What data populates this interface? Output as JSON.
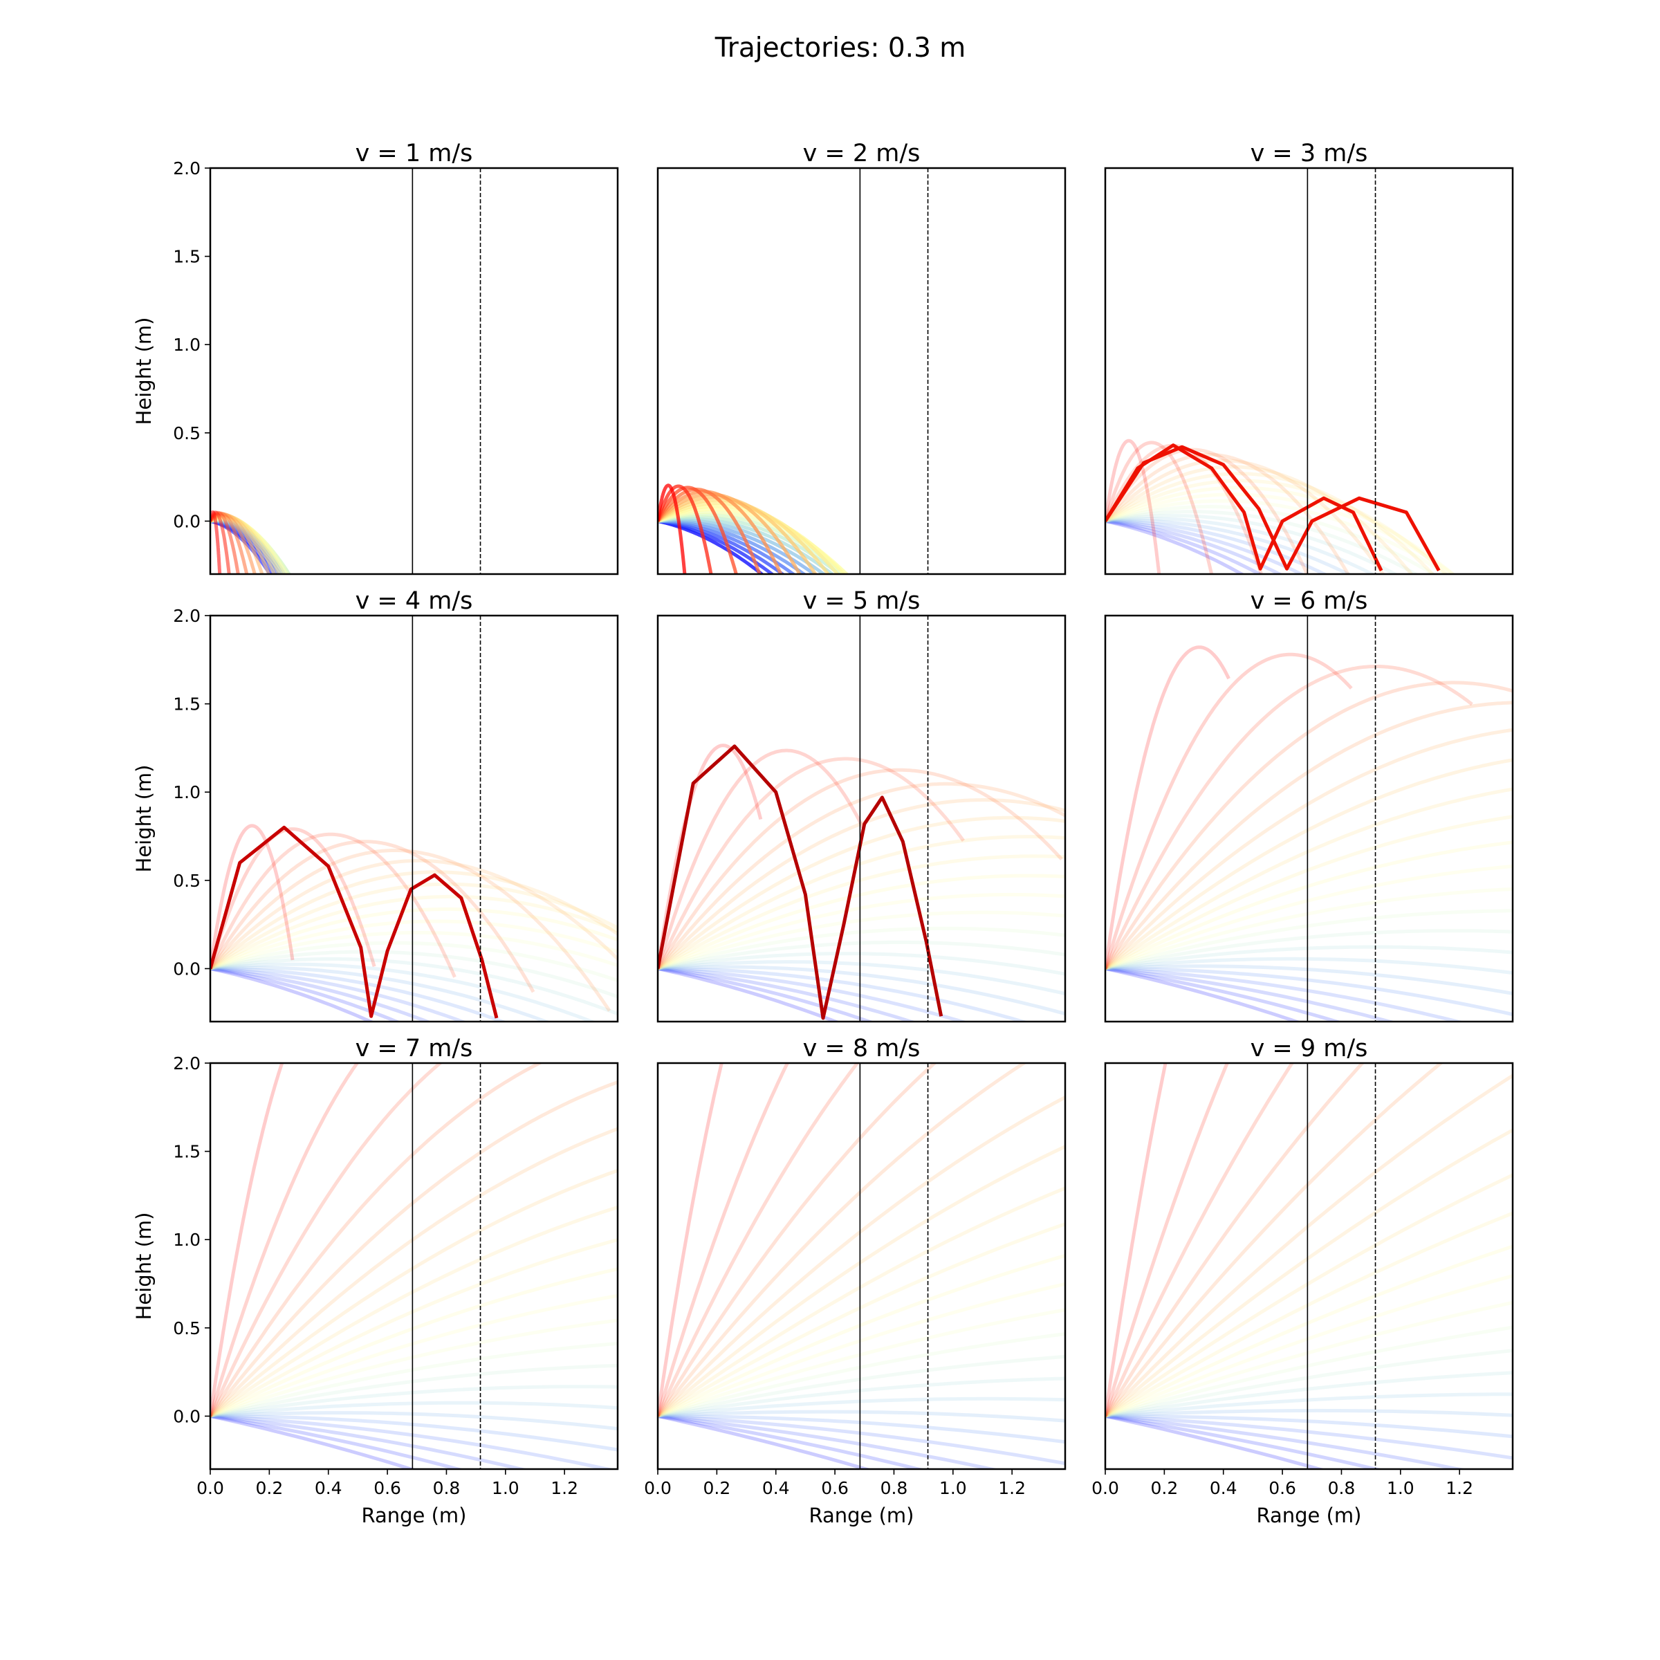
{
  "chart_data": {
    "type": "line",
    "title": "Trajectories: 0.3 m",
    "xlabel": "Range (m)",
    "ylabel": "Height (m)",
    "xlim": [
      0,
      1.38
    ],
    "ylim": [
      -0.3,
      2.0
    ],
    "x_ticks": [
      "0.0",
      "0.2",
      "0.4",
      "0.6",
      "0.8",
      "1.0",
      "1.2"
    ],
    "y_ticks": [
      "0.0",
      "0.5",
      "1.0",
      "1.5",
      "2.0"
    ],
    "reference_lines": {
      "solid_x": 0.685,
      "dashed_x": 0.915
    },
    "launch_angles_deg": {
      "min": -20,
      "max": 85,
      "count": 22
    },
    "colormap": "rainbow (blue for low angles → red for high angles)",
    "panels": [
      {
        "title": "v = 1 m/s",
        "speed": 1,
        "highlight": null
      },
      {
        "title": "v = 2 m/s",
        "speed": 2,
        "highlight": null
      },
      {
        "title": "v = 3 m/s",
        "speed": 3,
        "highlight": {
          "color": "#ee1100",
          "paths": [
            [
              [
                0,
                0
              ],
              [
                0.11,
                0.3
              ],
              [
                0.23,
                0.43
              ],
              [
                0.36,
                0.3
              ],
              [
                0.47,
                0.05
              ],
              [
                0.525,
                -0.27
              ],
              [
                0.6,
                0.0
              ],
              [
                0.74,
                0.13
              ],
              [
                0.84,
                0.05
              ],
              [
                0.935,
                -0.28
              ]
            ],
            [
              [
                0,
                0
              ],
              [
                0.13,
                0.33
              ],
              [
                0.26,
                0.42
              ],
              [
                0.4,
                0.32
              ],
              [
                0.52,
                0.07
              ],
              [
                0.615,
                -0.27
              ],
              [
                0.7,
                0.0
              ],
              [
                0.86,
                0.13
              ],
              [
                1.02,
                0.05
              ],
              [
                1.13,
                -0.28
              ]
            ]
          ]
        }
      },
      {
        "title": "v = 4 m/s",
        "speed": 4,
        "highlight": {
          "color": "#c80000",
          "paths": [
            [
              [
                0,
                0
              ],
              [
                0.1,
                0.6
              ],
              [
                0.25,
                0.8
              ],
              [
                0.4,
                0.58
              ],
              [
                0.51,
                0.12
              ],
              [
                0.545,
                -0.27
              ],
              [
                0.6,
                0.1
              ],
              [
                0.68,
                0.45
              ],
              [
                0.76,
                0.53
              ],
              [
                0.85,
                0.4
              ],
              [
                0.92,
                0.05
              ],
              [
                0.97,
                -0.28
              ]
            ]
          ]
        }
      },
      {
        "title": "v = 5 m/s",
        "speed": 5,
        "highlight": {
          "color": "#b50000",
          "paths": [
            [
              [
                0,
                0
              ],
              [
                0.12,
                1.05
              ],
              [
                0.26,
                1.26
              ],
              [
                0.4,
                1.0
              ],
              [
                0.5,
                0.42
              ],
              [
                0.56,
                -0.28
              ],
              [
                0.63,
                0.25
              ],
              [
                0.7,
                0.82
              ],
              [
                0.76,
                0.97
              ],
              [
                0.83,
                0.72
              ],
              [
                0.91,
                0.15
              ],
              [
                0.96,
                -0.27
              ]
            ]
          ]
        }
      },
      {
        "title": "v = 6 m/s",
        "speed": 6,
        "highlight": null
      },
      {
        "title": "v = 7 m/s",
        "speed": 7,
        "highlight": null
      },
      {
        "title": "v = 8 m/s",
        "speed": 8,
        "highlight": null
      },
      {
        "title": "v = 9 m/s",
        "speed": 9,
        "highlight": null
      }
    ]
  }
}
